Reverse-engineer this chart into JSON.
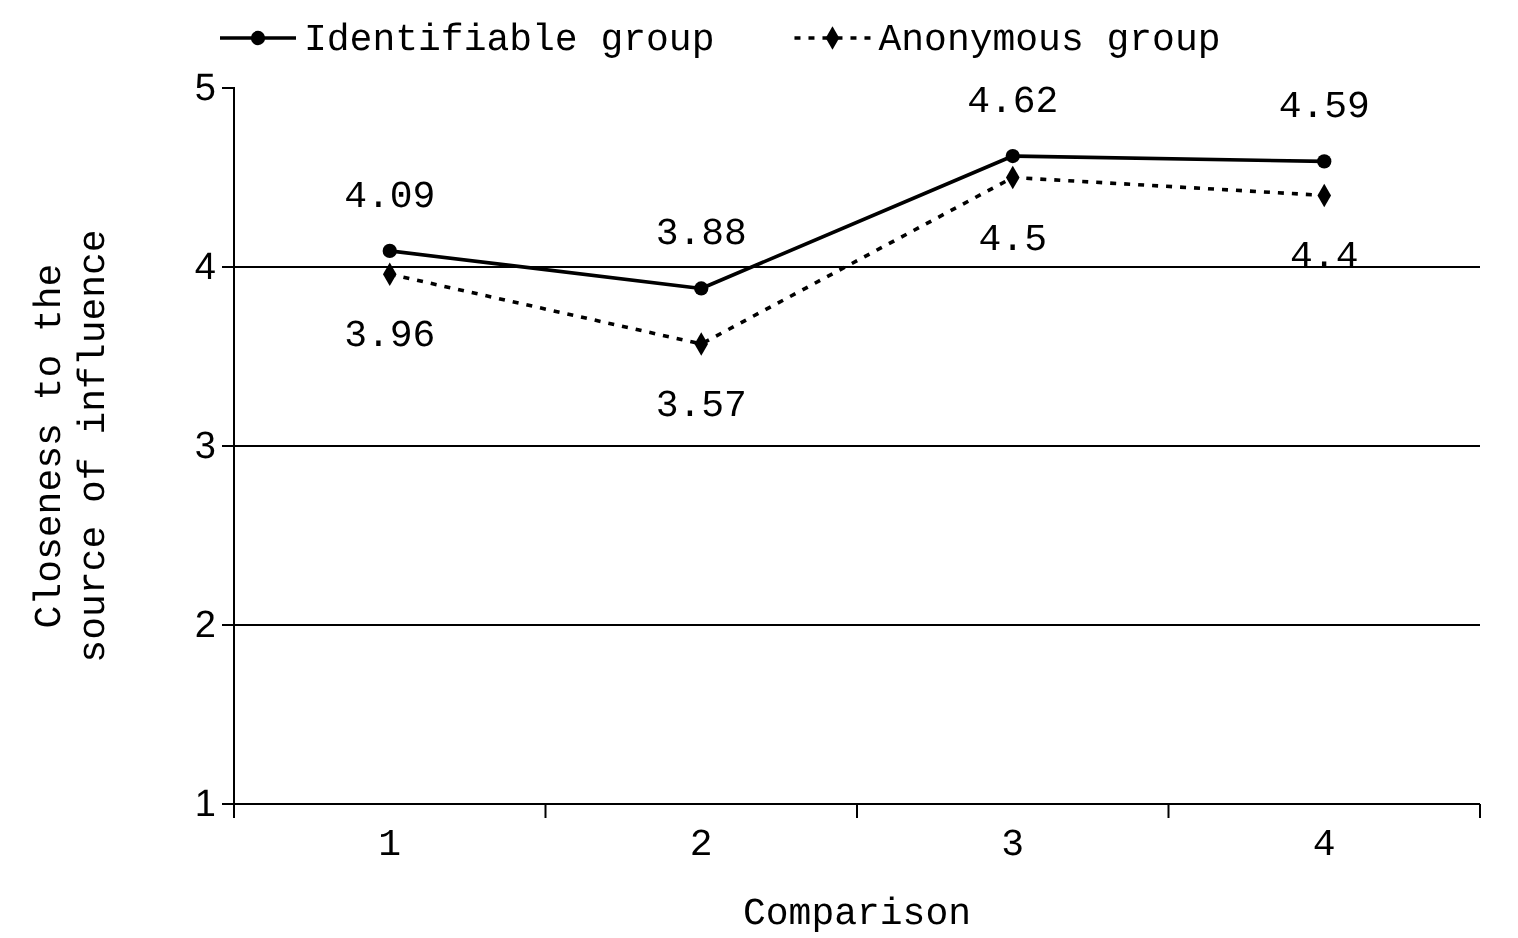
{
  "chart_data": {
    "type": "line",
    "xlabel": "Comparison",
    "ylabel": "Closeness to the source of influence",
    "categories": [
      "1",
      "2",
      "3",
      "4"
    ],
    "series": [
      {
        "name": "Identifiable group",
        "color": "#000000",
        "values": [
          4.09,
          3.88,
          4.62,
          4.59
        ],
        "marker": "circle",
        "line_style": "solid"
      },
      {
        "name": "Anonymous group",
        "color": "#000000",
        "values": [
          3.96,
          3.57,
          4.5,
          4.4
        ],
        "marker": "diamond",
        "line_style": "dotted"
      }
    ],
    "ylim": [
      1,
      5
    ],
    "yticks": [
      1,
      2,
      3,
      4,
      5
    ],
    "grid": "y",
    "legend": "top",
    "data_labels": true
  }
}
